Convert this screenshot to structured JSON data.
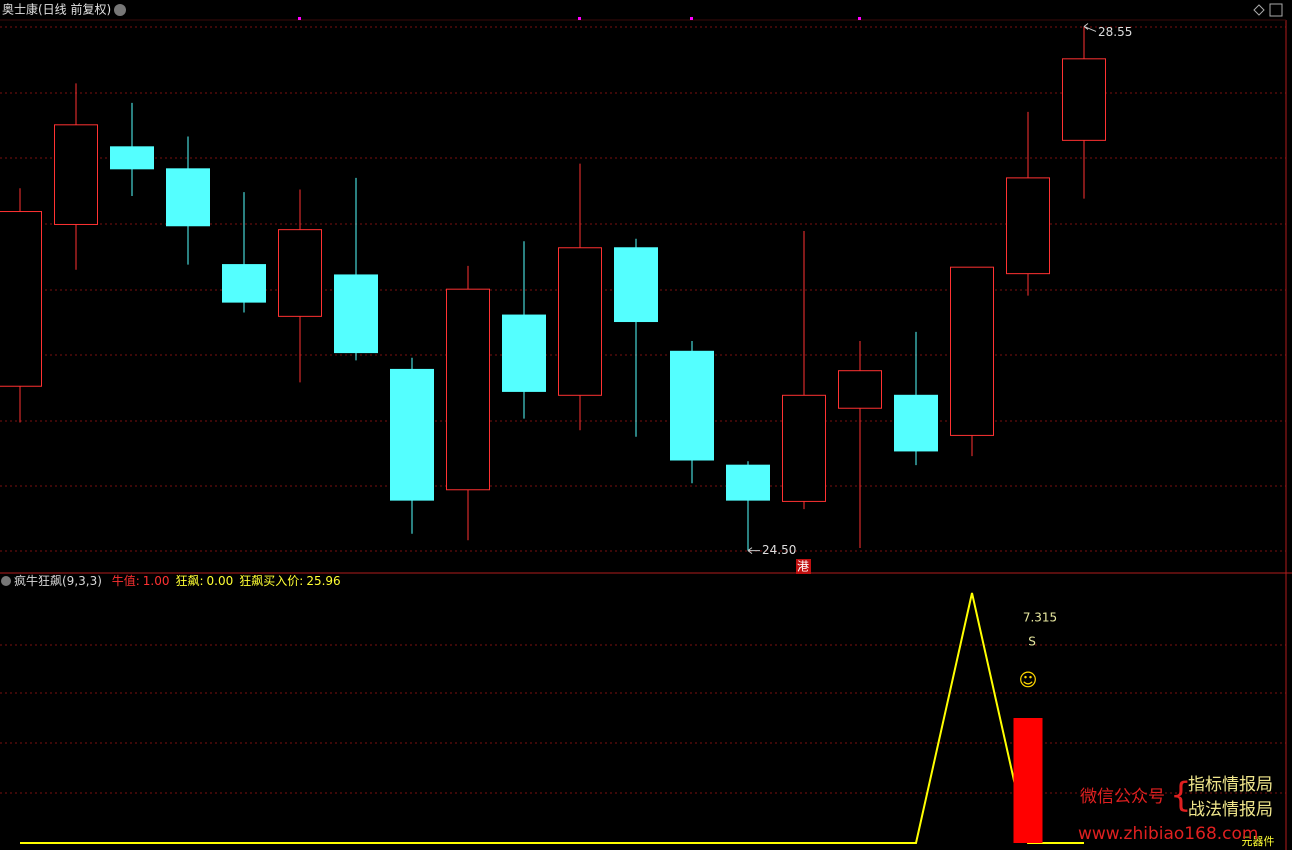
{
  "header": {
    "title": "奥士康(日线 前复权)",
    "marker": "港",
    "footer": "元器件"
  },
  "chart_data": [
    {
      "type": "candlestick",
      "open": [
        25.77,
        27.02,
        27.62,
        27.45,
        26.71,
        26.31,
        26.63,
        25.9,
        24.97,
        26.32,
        25.7,
        26.84,
        26.04,
        25.16,
        24.88,
        25.6,
        25.7,
        25.39,
        26.64,
        27.67
      ],
      "high": [
        27.3,
        28.11,
        27.96,
        27.7,
        27.27,
        27.29,
        27.38,
        25.99,
        26.7,
        26.89,
        27.49,
        26.91,
        26.12,
        25.19,
        26.97,
        26.12,
        26.19,
        26.69,
        27.89,
        28.55
      ],
      "low": [
        25.49,
        26.67,
        27.24,
        26.71,
        26.34,
        25.8,
        25.97,
        24.63,
        24.58,
        25.52,
        25.43,
        25.38,
        25.02,
        24.5,
        24.82,
        24.52,
        25.16,
        25.23,
        26.47,
        27.22
      ],
      "close": [
        27.12,
        27.79,
        27.45,
        27.01,
        26.42,
        26.98,
        26.03,
        24.89,
        26.52,
        25.73,
        26.84,
        26.27,
        25.2,
        24.89,
        25.7,
        25.89,
        25.27,
        26.69,
        27.38,
        28.3
      ],
      "ylim": [
        24.35,
        28.6
      ],
      "up_color": "#ff3232",
      "down_color": "#54ffff",
      "high_label": {
        "value": 28.55,
        "label": "28.55"
      },
      "low_label": {
        "value": 24.5,
        "label": "24.50"
      }
    },
    {
      "type": "indicator",
      "title": "疯牛狂飙(9,3,3)",
      "legend": [
        {
          "label": "牛值:",
          "value": "1.00",
          "color": "#ff3232"
        },
        {
          "label": "狂飙:",
          "value": "0.00",
          "color": "#ffff33"
        },
        {
          "label": "狂飙买入价:",
          "value": "25.96",
          "color": "#ffff33"
        }
      ],
      "ylim": [
        0,
        2.15
      ],
      "series": [
        {
          "kind": "line",
          "color": "#ffff00",
          "values": [
            0,
            0,
            0,
            0,
            0,
            0,
            0,
            0,
            0,
            0,
            0,
            0,
            0,
            0,
            0,
            0,
            0,
            2,
            0,
            0
          ]
        },
        {
          "kind": "bar",
          "color": "#ff0000",
          "values": [
            null,
            null,
            null,
            null,
            null,
            null,
            null,
            null,
            null,
            null,
            null,
            null,
            null,
            null,
            null,
            null,
            null,
            null,
            1,
            null
          ]
        }
      ],
      "annotations": [
        "7.315",
        "S",
        "☺"
      ]
    }
  ],
  "watermark": {
    "label": "微信公众号",
    "brace": "{",
    "line1": "指标情报局",
    "line2": "战法情报局",
    "url": "www.zhibiao168.com"
  }
}
